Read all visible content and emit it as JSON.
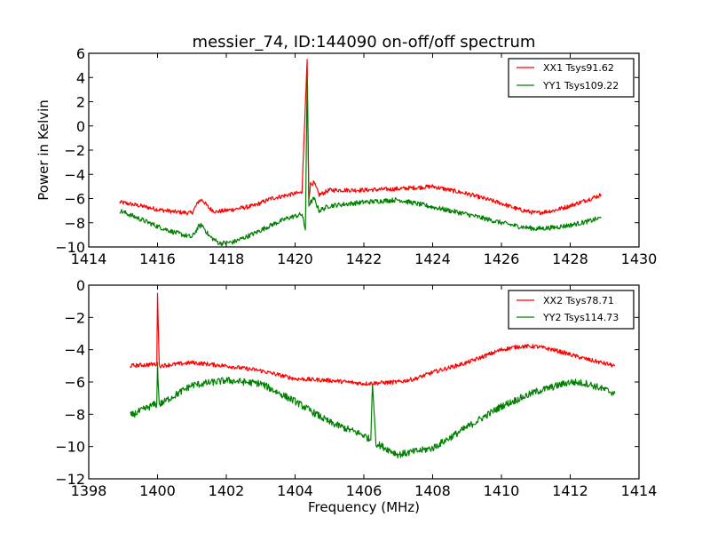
{
  "chart_data": [
    {
      "type": "line",
      "title": "messier_74, ID:144090 on-off/off spectrum",
      "xlabel": "",
      "ylabel": "Power in Kelvin",
      "xlim": [
        1414,
        1430
      ],
      "ylim": [
        -10,
        6
      ],
      "xticks": [
        1414,
        1416,
        1418,
        1420,
        1422,
        1424,
        1426,
        1428,
        1430
      ],
      "yticks": [
        -10,
        -8,
        -6,
        -4,
        -2,
        0,
        2,
        4,
        6
      ],
      "legend_position": "top-right",
      "grid": false,
      "series": [
        {
          "name": "XX1 Tsys91.62",
          "color": "#ff0000",
          "noise": 0.18,
          "x": [
            1414.9,
            1415.5,
            1416.0,
            1416.5,
            1417.0,
            1417.2,
            1417.3,
            1417.5,
            1417.7,
            1418.2,
            1418.8,
            1419.3,
            1419.8,
            1420.2,
            1420.35,
            1420.4,
            1420.45,
            1420.55,
            1420.7,
            1421.0,
            1422.0,
            1423.0,
            1424.0,
            1425.0,
            1426.0,
            1426.5,
            1427.0,
            1427.5,
            1428.0,
            1428.5,
            1428.9
          ],
          "y": [
            -6.3,
            -6.6,
            -6.9,
            -7.1,
            -7.2,
            -6.2,
            -6.1,
            -6.8,
            -7.1,
            -6.9,
            -6.6,
            -6.0,
            -5.7,
            -5.5,
            5.5,
            -6.0,
            -4.8,
            -4.7,
            -5.7,
            -5.3,
            -5.3,
            -5.2,
            -5.0,
            -5.6,
            -6.4,
            -6.9,
            -7.2,
            -7.0,
            -6.6,
            -6.1,
            -5.7
          ]
        },
        {
          "name": "YY1 Tsys109.22",
          "color": "#008000",
          "noise": 0.2,
          "x": [
            1414.9,
            1415.5,
            1416.0,
            1416.5,
            1417.0,
            1417.2,
            1417.3,
            1417.5,
            1417.8,
            1418.2,
            1418.8,
            1419.3,
            1419.8,
            1420.2,
            1420.3,
            1420.35,
            1420.4,
            1420.55,
            1420.7,
            1421.0,
            1422.0,
            1423.0,
            1424.0,
            1425.0,
            1426.0,
            1426.5,
            1427.0,
            1427.5,
            1428.0,
            1428.5,
            1428.9
          ],
          "y": [
            -7.0,
            -7.7,
            -8.3,
            -8.8,
            -9.2,
            -8.3,
            -8.2,
            -9.1,
            -9.7,
            -9.6,
            -8.9,
            -8.2,
            -7.6,
            -7.3,
            -8.6,
            4.0,
            -6.5,
            -6.0,
            -7.0,
            -6.6,
            -6.3,
            -6.1,
            -6.7,
            -7.3,
            -8.0,
            -8.3,
            -8.5,
            -8.4,
            -8.2,
            -7.9,
            -7.6
          ]
        }
      ]
    },
    {
      "type": "line",
      "title": "",
      "xlabel": "Frequency (MHz)",
      "ylabel": "",
      "xlim": [
        1398,
        1414
      ],
      "ylim": [
        -12,
        0
      ],
      "xticks": [
        1398,
        1400,
        1402,
        1404,
        1406,
        1408,
        1410,
        1412,
        1414
      ],
      "yticks": [
        -12,
        -10,
        -8,
        -6,
        -4,
        -2,
        0
      ],
      "legend_position": "top-right",
      "grid": false,
      "series": [
        {
          "name": "XX2 Tsys78.71",
          "color": "#ff0000",
          "noise": 0.13,
          "x": [
            1399.2,
            1399.9,
            1399.98,
            1400.0,
            1400.05,
            1401.0,
            1402.0,
            1403.0,
            1404.0,
            1405.0,
            1406.0,
            1407.0,
            1407.5,
            1408.0,
            1409.0,
            1410.0,
            1410.5,
            1411.0,
            1411.5,
            1412.0,
            1412.5,
            1413.3
          ],
          "y": [
            -5.0,
            -4.9,
            -4.9,
            -0.5,
            -5.0,
            -4.8,
            -5.0,
            -5.3,
            -5.8,
            -5.9,
            -6.1,
            -6.0,
            -5.8,
            -5.4,
            -4.8,
            -4.0,
            -3.8,
            -3.8,
            -4.0,
            -4.3,
            -4.6,
            -5.0
          ]
        },
        {
          "name": "YY2 Tsys114.73",
          "color": "#008000",
          "noise": 0.22,
          "x": [
            1399.2,
            1399.9,
            1399.98,
            1400.0,
            1400.05,
            1401.0,
            1402.0,
            1403.0,
            1404.0,
            1405.0,
            1406.0,
            1406.2,
            1406.25,
            1406.35,
            1407.0,
            1408.0,
            1409.0,
            1410.0,
            1411.0,
            1412.0,
            1412.5,
            1413.3
          ],
          "y": [
            -8.1,
            -7.4,
            -7.4,
            -4.9,
            -7.4,
            -6.2,
            -5.9,
            -6.1,
            -7.2,
            -8.5,
            -9.3,
            -9.6,
            -6.1,
            -9.8,
            -10.5,
            -10.1,
            -8.8,
            -7.5,
            -6.6,
            -6.0,
            -6.1,
            -6.7
          ]
        }
      ]
    }
  ]
}
